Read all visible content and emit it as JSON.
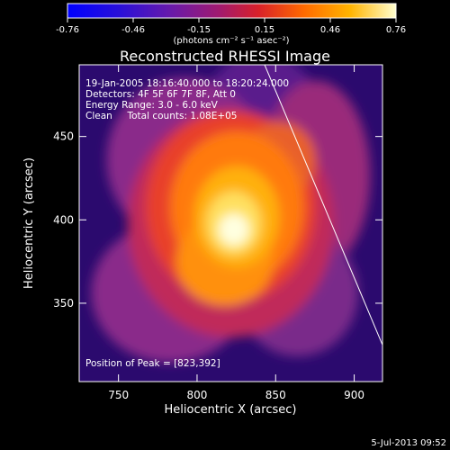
{
  "colors": {
    "background": "#000000",
    "foreground": "#ffffff",
    "colormap": [
      "#2b0a6e",
      "#5a1a8c",
      "#8a2a8a",
      "#c02a5a",
      "#e8402a",
      "#ff7a10",
      "#ffb010",
      "#ffe060",
      "#ffffe0"
    ]
  },
  "colorbar": {
    "ticks": [
      "-0.76",
      "-0.46",
      "-0.15",
      "0.15",
      "0.46",
      "0.76"
    ],
    "unit_label": "(photons cm⁻² s⁻¹ asec⁻²)"
  },
  "chart_data": {
    "type": "heatmap",
    "title": "Reconstructed RHESSI Image",
    "xlabel": "Heliocentric X (arcsec)",
    "ylabel": "Heliocentric Y (arcsec)",
    "xlim": [
      725,
      918
    ],
    "ylim": [
      303,
      493
    ],
    "x_ticks": [
      750,
      800,
      850,
      900
    ],
    "y_ticks": [
      350,
      400,
      450
    ],
    "zlim": [
      -0.76,
      0.76
    ],
    "peak": {
      "x": 823,
      "y": 392
    },
    "limb_line": [
      {
        "x": 843,
        "y": 493
      },
      {
        "x": 918,
        "y": 325
      }
    ],
    "info_lines": [
      "19-Jan-2005 18:16:40.000 to 18:20:24.000",
      "Detectors: 4F 5F 6F 7F 8F, Att 0",
      "Energy Range: 3.0 - 6.0 keV",
      "Clean     Total counts: 1.08E+05"
    ],
    "peak_label": "Position of Peak = [823,392]"
  },
  "footer": {
    "timestamp": "5-Jul-2013 09:52"
  }
}
